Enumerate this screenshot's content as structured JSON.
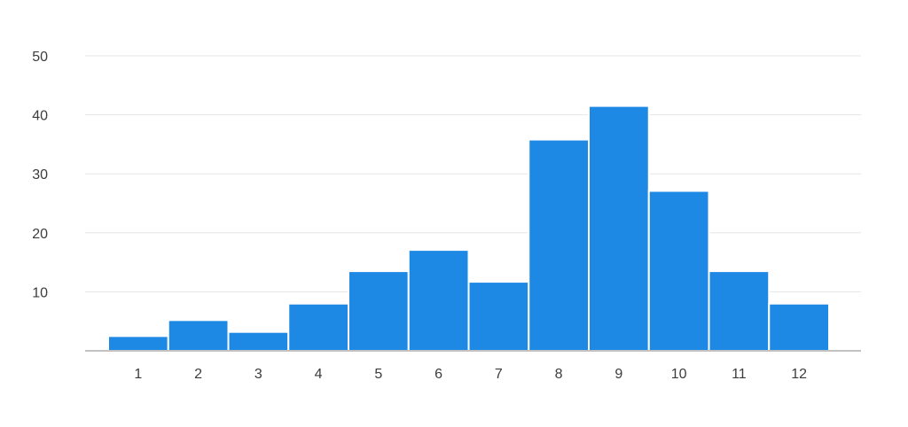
{
  "chart_data": {
    "type": "bar",
    "title": "",
    "xlabel": "",
    "ylabel": "",
    "categories": [
      "1",
      "2",
      "3",
      "4",
      "5",
      "6",
      "7",
      "8",
      "9",
      "10",
      "11",
      "12"
    ],
    "values": [
      2.5,
      5.2,
      3.2,
      8.0,
      13.5,
      17.1,
      11.7,
      35.8,
      41.5,
      27.1,
      13.5,
      8.0
    ],
    "ylim": [
      0,
      50
    ],
    "yticks": [
      "10",
      "20",
      "30",
      "40",
      "50"
    ],
    "grid": true,
    "legend": "none",
    "bar_color": "#1e88e5",
    "grid_color": "#e6e6e6",
    "axis_color": "#9e9e9e",
    "label_color": "#3c3c3c"
  }
}
